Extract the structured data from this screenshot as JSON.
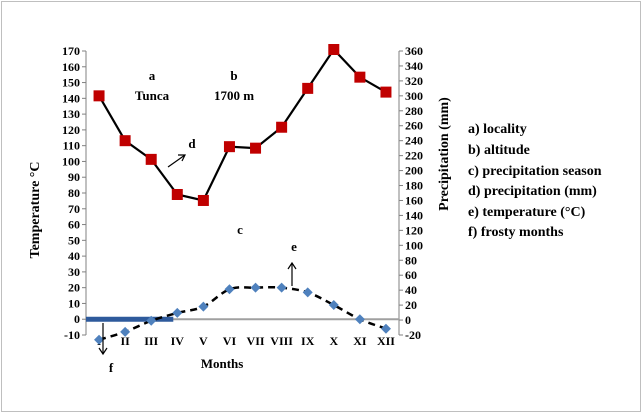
{
  "chart_data": {
    "type": "line",
    "categories": [
      "I",
      "II",
      "III",
      "IV",
      "V",
      "VI",
      "VII",
      "VIII",
      "IX",
      "X",
      "XI",
      "XII"
    ],
    "xlabel": "Months",
    "ylabel": "Temperature °C",
    "y2label": "Precipitation (mm)",
    "ylim": [
      -10,
      170
    ],
    "y2lim": [
      -20,
      360
    ],
    "y_ticks": [
      "-10",
      "0",
      "10",
      "20",
      "30",
      "40",
      "50",
      "60",
      "70",
      "80",
      "90",
      "100",
      "110",
      "120",
      "130",
      "140",
      "150",
      "160",
      "170"
    ],
    "y2_ticks": [
      "-20",
      "0",
      "20",
      "40",
      "60",
      "80",
      "100",
      "120",
      "140",
      "160",
      "180",
      "200",
      "220",
      "240",
      "260",
      "280",
      "300",
      "320",
      "340",
      "360"
    ],
    "series": [
      {
        "axis": "right",
        "style": "solid-line-square-markers",
        "color": "#c00000",
        "values": [
          300,
          240,
          215,
          168,
          160,
          232,
          230,
          258,
          310,
          362,
          325,
          305
        ]
      },
      {
        "axis": "left",
        "style": "dashed-line-diamond-markers",
        "color": "#4f81bd",
        "values": [
          -13,
          -8,
          -1,
          4,
          8,
          19,
          20,
          20,
          17,
          9,
          0,
          -6
        ]
      }
    ],
    "frost_band": {
      "axis": "left",
      "value": 0,
      "from_index": 0,
      "to_index": 3,
      "color": "#2e5a9c"
    },
    "annotations": {
      "a": "a",
      "locality": "Tunca",
      "b": "b",
      "altitude": "1700 m",
      "c": "c",
      "d": "d",
      "e": "e",
      "f": "f"
    },
    "legend": {
      "placement": "right",
      "items": [
        "a) locality",
        "b) altitude",
        "c) precipitation season",
        "d) precipitation (mm)",
        "e) temperature (°C)",
        "f) frosty months"
      ]
    }
  }
}
